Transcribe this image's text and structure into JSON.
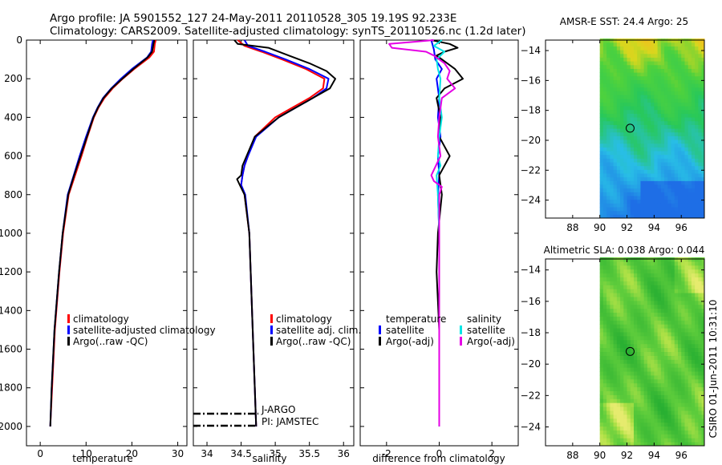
{
  "title": {
    "line1": "Argo profile: JA 5901552_127 24-May-2011 20110528_305 19.19S 92.233E",
    "line2": "Climatology: CARS2009. Satellite-adjusted climatology: synTS_20110526.nc (1.2d later)"
  },
  "footer": {
    "stamp": "CSIRO 01-Jun-2011 10:31:10"
  },
  "colors": {
    "climatology": "#ff0000",
    "satellite": "#0000ff",
    "argo": "#000000",
    "sal_satellite": "#00e5e5",
    "sal_argo": "#e500e5"
  },
  "chart_data": [
    {
      "type": "line",
      "name": "temperature",
      "xlabel": "temperature",
      "xlim": [
        -3,
        32
      ],
      "ylim": [
        2100,
        0
      ],
      "xticks": [
        0,
        10,
        20,
        30
      ],
      "yticks": [
        0,
        200,
        400,
        600,
        800,
        1000,
        1200,
        1400,
        1600,
        1800,
        2000
      ],
      "legend": [
        "climatology",
        "satellite-adjusted climatology",
        "Argo(..raw -QC)"
      ],
      "series": [
        {
          "name": "climatology",
          "color": "#ff0000",
          "depth": [
            0,
            20,
            60,
            90,
            150,
            200,
            250,
            300,
            350,
            400,
            500,
            600,
            700,
            800,
            1000,
            1200,
            1500,
            1800,
            2000
          ],
          "value": [
            25.2,
            25.0,
            24.8,
            23.8,
            20.5,
            18.0,
            15.8,
            14.0,
            12.7,
            11.7,
            10.3,
            9.0,
            7.6,
            6.2,
            5.0,
            4.2,
            3.2,
            2.6,
            2.2
          ]
        },
        {
          "name": "satellite",
          "color": "#0000ff",
          "depth": [
            0,
            20,
            60,
            90,
            150,
            200,
            250,
            300,
            350,
            400,
            500,
            600,
            700,
            800,
            1000,
            1200,
            1500,
            1800,
            2000
          ],
          "value": [
            24.6,
            24.4,
            24.2,
            23.3,
            20.0,
            17.6,
            15.5,
            13.7,
            12.5,
            11.5,
            10.0,
            8.6,
            7.3,
            6.0,
            4.9,
            4.1,
            3.1,
            2.5,
            2.2
          ]
        },
        {
          "name": "argo",
          "color": "#000000",
          "depth": [
            0,
            20,
            60,
            90,
            150,
            200,
            250,
            300,
            350,
            400,
            500,
            600,
            700,
            800,
            1000,
            1200,
            1500,
            1800,
            2000
          ],
          "value": [
            24.9,
            24.7,
            24.4,
            23.4,
            20.3,
            17.9,
            15.6,
            13.8,
            12.6,
            11.6,
            10.2,
            8.8,
            7.4,
            6.1,
            4.9,
            4.1,
            3.1,
            2.5,
            2.2
          ]
        }
      ]
    },
    {
      "type": "line",
      "name": "salinity",
      "xlabel": "salinity",
      "xlim": [
        33.8,
        36.15
      ],
      "ylim": [
        2100,
        0
      ],
      "xticks": [
        34,
        34.5,
        35,
        35.5,
        36
      ],
      "xticklabels": [
        "34",
        "34.5",
        "35",
        "35.5",
        "36"
      ],
      "legend": [
        "climatology",
        "satellite adj. clim.",
        "Argo(..raw -QC)"
      ],
      "annotations": [
        "J-ARGO",
        "PI: JAMSTEC"
      ],
      "series": [
        {
          "name": "climatology",
          "color": "#ff0000",
          "depth": [
            0,
            30,
            60,
            100,
            150,
            200,
            250,
            300,
            350,
            400,
            500,
            600,
            650,
            700,
            750,
            800,
            1000,
            1500,
            1800,
            2000
          ],
          "value": [
            34.45,
            34.55,
            34.8,
            35.1,
            35.45,
            35.72,
            35.7,
            35.5,
            35.25,
            35.0,
            34.7,
            34.6,
            34.55,
            34.52,
            34.5,
            34.55,
            34.62,
            34.67,
            34.7,
            34.72
          ]
        },
        {
          "name": "satellite",
          "color": "#0000ff",
          "depth": [
            0,
            30,
            60,
            100,
            150,
            200,
            250,
            300,
            350,
            400,
            500,
            600,
            650,
            700,
            750,
            800,
            1000,
            1500,
            1800,
            2000
          ],
          "value": [
            34.55,
            34.6,
            34.85,
            35.15,
            35.5,
            35.78,
            35.75,
            35.55,
            35.3,
            35.05,
            34.72,
            34.6,
            34.55,
            34.52,
            34.5,
            34.56,
            34.62,
            34.67,
            34.7,
            34.72
          ]
        },
        {
          "name": "argo",
          "color": "#000000",
          "depth": [
            0,
            20,
            40,
            80,
            120,
            160,
            200,
            250,
            300,
            350,
            400,
            500,
            600,
            650,
            700,
            720,
            750,
            800,
            1000,
            1500,
            1800,
            2000
          ],
          "value": [
            34.4,
            34.45,
            34.9,
            35.2,
            35.5,
            35.75,
            35.88,
            35.8,
            35.55,
            35.3,
            35.05,
            34.7,
            34.58,
            34.52,
            34.5,
            34.44,
            34.48,
            34.55,
            34.62,
            34.67,
            34.7,
            34.72
          ]
        }
      ]
    },
    {
      "type": "line",
      "name": "difference",
      "xlabel": "difference from climatology",
      "xlim": [
        -3,
        3
      ],
      "ylim": [
        2100,
        0
      ],
      "xticks": [
        -2,
        0,
        2
      ],
      "legend_temperature": [
        "temperature",
        "satellite",
        "Argo(-adj)"
      ],
      "legend_salinity": [
        "salinity",
        "satellite",
        "Argo(-adj)"
      ],
      "series": [
        {
          "name": "temp satellite",
          "color": "#0000ff",
          "depth": [
            0,
            50,
            100,
            150,
            200,
            300,
            400,
            500,
            600,
            700,
            800,
            1000,
            1500,
            2000
          ],
          "value": [
            -0.3,
            -0.2,
            -0.15,
            0.1,
            -0.1,
            0.0,
            -0.05,
            0.05,
            -0.05,
            0.0,
            -0.05,
            0.0,
            0.0,
            0.0
          ]
        },
        {
          "name": "temp argo",
          "color": "#000000",
          "depth": [
            0,
            20,
            40,
            60,
            80,
            100,
            150,
            200,
            250,
            300,
            400,
            500,
            600,
            700,
            800,
            1000,
            1200,
            1500,
            2000
          ],
          "value": [
            -0.3,
            0.4,
            0.7,
            0.2,
            -0.1,
            0.1,
            0.6,
            0.9,
            0.2,
            -0.1,
            0.05,
            0.0,
            0.4,
            0.0,
            0.1,
            -0.05,
            -0.1,
            0.0,
            0.0
          ]
        },
        {
          "name": "sal satellite",
          "color": "#00e5e5",
          "depth": [
            0,
            30,
            60,
            100,
            150,
            200,
            300,
            400,
            500,
            600,
            650,
            700,
            800,
            1000,
            1500,
            2000
          ],
          "value": [
            0.1,
            -0.2,
            0.2,
            -0.1,
            -0.05,
            0.05,
            0.0,
            0.1,
            0.0,
            -0.05,
            0.05,
            -0.1,
            -0.05,
            0.0,
            0.0,
            0.0
          ]
        },
        {
          "name": "sal argo",
          "color": "#e500e5",
          "depth": [
            0,
            20,
            40,
            60,
            80,
            120,
            160,
            200,
            250,
            300,
            400,
            500,
            600,
            700,
            730,
            760,
            800,
            1000,
            1500,
            2000
          ],
          "value": [
            -0.2,
            -1.9,
            -1.8,
            -0.5,
            -0.2,
            0.2,
            0.4,
            0.3,
            0.6,
            0.1,
            0.0,
            -0.05,
            0.05,
            -0.3,
            -0.2,
            0.1,
            0.0,
            0.0,
            0.0,
            0.0
          ]
        }
      ]
    },
    {
      "type": "heatmap",
      "name": "amsre_sst",
      "title": "AMSR-E SST: 24.4 Argo: 25",
      "colormap": "sst",
      "xlim": [
        86,
        97.7
      ],
      "ylim": [
        -25.2,
        -13.3
      ],
      "data_xlim": [
        90,
        97.7
      ],
      "xticks": [
        88,
        90,
        92,
        94,
        96
      ],
      "yticks": [
        -14,
        -16,
        -18,
        -20,
        -22,
        -24
      ],
      "marker": {
        "lon": 92.233,
        "lat": -19.19
      }
    },
    {
      "type": "heatmap",
      "name": "altimetric_sla",
      "title": "Altimetric SLA: 0.038 Argo: 0.044",
      "colormap": "sla",
      "xlim": [
        86,
        97.7
      ],
      "ylim": [
        -25.2,
        -13.3
      ],
      "data_xlim": [
        90,
        97.7
      ],
      "xticks": [
        88,
        90,
        92,
        94,
        96
      ],
      "yticks": [
        -14,
        -16,
        -18,
        -20,
        -22,
        -24
      ],
      "marker": {
        "lon": 92.233,
        "lat": -19.19
      }
    }
  ]
}
